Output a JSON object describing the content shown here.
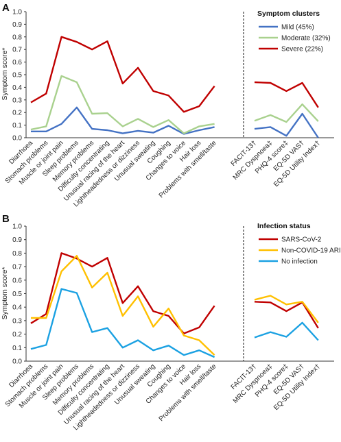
{
  "colors": {
    "mild": "#4472C4",
    "moderate": "#A9D18E",
    "severe": "#C00000",
    "sars": "#C00000",
    "nonCovid": "#FFC000",
    "noInfection": "#1BA1E2",
    "axis": "#333333"
  },
  "chart_data": [
    {
      "type": "line",
      "panel": "A",
      "ylabel": "Symptom score*",
      "ylim": [
        0,
        1
      ],
      "yticks": [
        "0.0",
        "0.1",
        "0.2",
        "0.3",
        "0.4",
        "0.5",
        "0.6",
        "0.7",
        "0.8",
        "0.9",
        "1.0"
      ],
      "grid": false,
      "legend": {
        "title": "Symptom clusters",
        "placement": "top-right"
      },
      "categories": [
        "Diarrhoea",
        "Stomach problems",
        "Muscle or joint pain",
        "Sleep problems",
        "Memory problems",
        "Difficulty concentrating",
        "Unusual racing of the heart",
        "Lightheadedness or dizziness",
        "Unusual sweating",
        "Coughing",
        "Changes to voice",
        "Hair loss",
        "Problems with smell/taste"
      ],
      "categories_right": [
        "FACIT-13†",
        "MRC Dyspnoea‡",
        "PHQ-4 score‡",
        "EQ-5D VAS†",
        "EQ-5D Utility Index†"
      ],
      "series": [
        {
          "name": "Mild (45%)",
          "color_key": "mild",
          "values": [
            0.05,
            0.05,
            0.11,
            0.24,
            0.07,
            0.06,
            0.035,
            0.055,
            0.04,
            0.095,
            0.03,
            0.06,
            0.085
          ],
          "values_right": [
            0.07,
            0.085,
            0.015,
            0.19,
            0.0
          ]
        },
        {
          "name": "Moderate (32%)",
          "color_key": "moderate",
          "values": [
            0.065,
            0.09,
            0.49,
            0.44,
            0.19,
            0.195,
            0.09,
            0.15,
            0.085,
            0.14,
            0.035,
            0.09,
            0.11
          ],
          "values_right": [
            0.135,
            0.18,
            0.125,
            0.265,
            0.13
          ]
        },
        {
          "name": "Severe (22%)",
          "color_key": "severe",
          "values": [
            0.28,
            0.35,
            0.8,
            0.76,
            0.7,
            0.765,
            0.43,
            0.555,
            0.37,
            0.335,
            0.205,
            0.25,
            0.41
          ],
          "values_right": [
            0.44,
            0.435,
            0.37,
            0.435,
            0.24
          ]
        }
      ]
    },
    {
      "type": "line",
      "panel": "B",
      "ylabel": "Symptom score*",
      "ylim": [
        0,
        1
      ],
      "yticks": [
        "0.0",
        "0.1",
        "0.2",
        "0.3",
        "0.4",
        "0.5",
        "0.6",
        "0.7",
        "0.8",
        "0.9",
        "1.0"
      ],
      "grid": false,
      "legend": {
        "title": "Infection status",
        "placement": "top-right"
      },
      "categories": [
        "Diarrhoea",
        "Stomach problems",
        "Muscle or joint pain",
        "Sleep problems",
        "Memory problems",
        "Difficulty concentrating",
        "Unusual racing of the heart",
        "Lightheadedness or dizziness",
        "Unusual sweating",
        "Coughing",
        "Changes to voice",
        "Hair loss",
        "Problems with smell/taste"
      ],
      "categories_right": [
        "FACIT-13†",
        "MRC Dyspnoea‡",
        "PHQ-4 score‡",
        "EQ-5D VAS†",
        "EQ-5D Utility Index†"
      ],
      "series": [
        {
          "name": "SARS-CoV-2",
          "color_key": "sars",
          "values": [
            0.28,
            0.35,
            0.8,
            0.76,
            0.7,
            0.765,
            0.43,
            0.555,
            0.37,
            0.335,
            0.205,
            0.25,
            0.41
          ],
          "values_right": [
            0.44,
            0.435,
            0.37,
            0.435,
            0.245
          ]
        },
        {
          "name": "Non-COVID-19 ARIs",
          "color_key": "nonCovid",
          "values": [
            0.32,
            0.32,
            0.665,
            0.78,
            0.545,
            0.655,
            0.335,
            0.48,
            0.255,
            0.39,
            0.19,
            0.155,
            0.045
          ],
          "values_right": [
            0.455,
            0.485,
            0.42,
            0.44,
            0.285
          ]
        },
        {
          "name": "No infection",
          "color_key": "noInfection",
          "values": [
            0.09,
            0.12,
            0.535,
            0.505,
            0.215,
            0.245,
            0.1,
            0.155,
            0.08,
            0.115,
            0.045,
            0.08,
            0.03
          ],
          "values_right": [
            0.175,
            0.215,
            0.18,
            0.285,
            0.155
          ]
        }
      ]
    }
  ]
}
